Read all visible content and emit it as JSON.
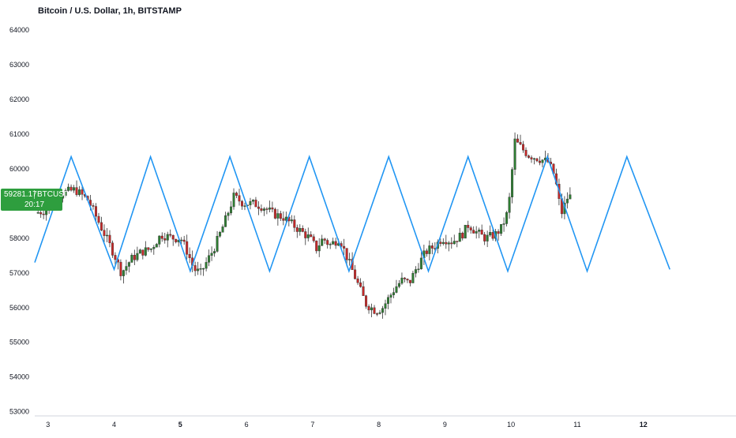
{
  "chart_data": {
    "type": "candlestick",
    "title": "Bitcoin / U.S. Dollar, 1h, BITSTAMP",
    "y_ticks": [
      53000,
      54000,
      55000,
      56000,
      57000,
      58000,
      59000,
      60000,
      61000,
      62000,
      63000,
      64000
    ],
    "ylim": [
      52900,
      64300
    ],
    "x_ticks": [
      {
        "label": "3",
        "day": 3,
        "bold": false
      },
      {
        "label": "4",
        "day": 4,
        "bold": false
      },
      {
        "label": "5",
        "day": 5,
        "bold": true
      },
      {
        "label": "6",
        "day": 6,
        "bold": false
      },
      {
        "label": "7",
        "day": 7,
        "bold": false
      },
      {
        "label": "8",
        "day": 8,
        "bold": false
      },
      {
        "label": "9",
        "day": 9,
        "bold": false
      },
      {
        "label": "10",
        "day": 10,
        "bold": false
      },
      {
        "label": "11",
        "day": 11,
        "bold": false
      },
      {
        "label": "12",
        "day": 12,
        "bold": true
      }
    ],
    "xlim": [
      2.8,
      13.4
    ],
    "colors": {
      "up": "#26a69a",
      "down": "#ef5350",
      "up_fill": "#2e7d32",
      "down_fill": "#c62828",
      "wave": "#2196f3",
      "tag": "#2e9e3e"
    },
    "candle_anchors": [
      [
        2.8,
        58700
      ],
      [
        3.0,
        58800
      ],
      [
        3.25,
        59300
      ],
      [
        3.45,
        59400
      ],
      [
        3.65,
        59100
      ],
      [
        3.9,
        58100
      ],
      [
        4.05,
        57500
      ],
      [
        4.15,
        57000
      ],
      [
        4.3,
        57400
      ],
      [
        4.45,
        57600
      ],
      [
        4.6,
        57700
      ],
      [
        4.75,
        58100
      ],
      [
        4.95,
        58000
      ],
      [
        5.05,
        58000
      ],
      [
        5.15,
        57600
      ],
      [
        5.25,
        57100
      ],
      [
        5.35,
        57000
      ],
      [
        5.55,
        57700
      ],
      [
        5.7,
        58400
      ],
      [
        5.85,
        59200
      ],
      [
        6.0,
        59000
      ],
      [
        6.15,
        59000
      ],
      [
        6.3,
        58900
      ],
      [
        6.45,
        58700
      ],
      [
        6.6,
        58600
      ],
      [
        6.8,
        58300
      ],
      [
        7.0,
        58000
      ],
      [
        7.1,
        57700
      ],
      [
        7.2,
        58000
      ],
      [
        7.3,
        57800
      ],
      [
        7.45,
        58000
      ],
      [
        7.55,
        57500
      ],
      [
        7.7,
        56800
      ],
      [
        7.85,
        56100
      ],
      [
        8.0,
        55900
      ],
      [
        8.1,
        56000
      ],
      [
        8.2,
        56300
      ],
      [
        8.3,
        56600
      ],
      [
        8.4,
        56800
      ],
      [
        8.5,
        56700
      ],
      [
        8.6,
        57100
      ],
      [
        8.75,
        57600
      ],
      [
        8.9,
        57800
      ],
      [
        9.0,
        58000
      ],
      [
        9.15,
        57900
      ],
      [
        9.3,
        58100
      ],
      [
        9.4,
        58400
      ],
      [
        9.5,
        58200
      ],
      [
        9.65,
        58000
      ],
      [
        9.8,
        58100
      ],
      [
        9.9,
        58300
      ],
      [
        10.0,
        58800
      ],
      [
        10.1,
        60800
      ],
      [
        10.2,
        60600
      ],
      [
        10.3,
        60400
      ],
      [
        10.45,
        60300
      ],
      [
        10.6,
        60200
      ],
      [
        10.7,
        59800
      ],
      [
        10.8,
        58700
      ],
      [
        10.9,
        59200
      ]
    ],
    "wave_vertices": [
      [
        2.8,
        57300
      ],
      [
        3.35,
        60350
      ],
      [
        4.0,
        57100
      ],
      [
        4.55,
        60350
      ],
      [
        5.15,
        57050
      ],
      [
        5.75,
        60350
      ],
      [
        6.35,
        57050
      ],
      [
        6.95,
        60350
      ],
      [
        7.55,
        57050
      ],
      [
        8.15,
        60350
      ],
      [
        8.75,
        57050
      ],
      [
        9.35,
        60350
      ],
      [
        9.95,
        57050
      ],
      [
        10.55,
        60350
      ],
      [
        11.15,
        57050
      ],
      [
        11.75,
        60350
      ],
      [
        12.4,
        57100
      ]
    ],
    "last_price": {
      "price": "59281.17",
      "symbol": "BTCUSD",
      "countdown": "20:17",
      "value": 59281.17
    }
  }
}
